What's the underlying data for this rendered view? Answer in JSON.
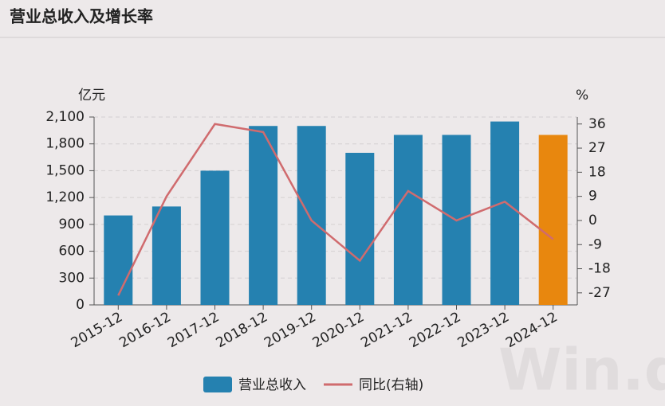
{
  "chart_data": {
    "type": "bar-line",
    "title": "营业总收入及增长率",
    "y_label": "亿元",
    "y2_label": "%",
    "watermark": "Win.d",
    "categories": [
      "2015-12",
      "2016-12",
      "2017-12",
      "2018-12",
      "2019-12",
      "2020-12",
      "2021-12",
      "2022-12",
      "2023-12",
      "2024-12"
    ],
    "series": [
      {
        "name": "营业总收入",
        "type": "bar",
        "color": "#2581b0",
        "bar_colors": [
          "#2581b0",
          "#2581b0",
          "#2581b0",
          "#2581b0",
          "#2581b0",
          "#2581b0",
          "#2581b0",
          "#2581b0",
          "#2581b0",
          "#e8870e"
        ],
        "values": [
          1000,
          1100,
          1500,
          2000,
          2000,
          1700,
          1900,
          1900,
          2050,
          1900
        ]
      },
      {
        "name": "同比(右轴)",
        "type": "line",
        "axis": "y2",
        "color": "#d06b6e",
        "values": [
          -28,
          9,
          36,
          33,
          0,
          -15,
          11,
          0,
          7,
          -7
        ]
      }
    ],
    "ylim": [
      0,
      2100
    ],
    "yticks": [
      0,
      300,
      600,
      900,
      {
        "value": 1200,
        "label": "1,200"
      },
      {
        "value": 1500,
        "label": "1,500"
      },
      {
        "value": 1800,
        "label": "1,800"
      },
      {
        "value": 2100,
        "label": "2,100"
      }
    ],
    "y2lim": [
      -31.5,
      38.6
    ],
    "y2ticks": [
      -27,
      -18,
      -9,
      0,
      9,
      18,
      27,
      36
    ],
    "grid": true
  }
}
